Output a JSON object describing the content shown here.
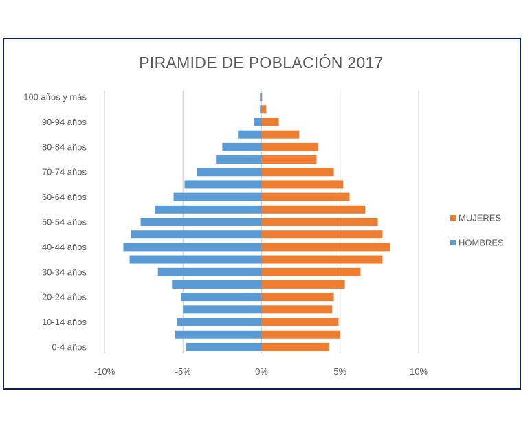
{
  "chart_data": {
    "type": "bar",
    "orientation": "horizontal",
    "title": "PIRAMIDE DE POBLACIÓN 2017",
    "categories": [
      "0-4 años",
      "",
      "10-14 años",
      "",
      "20-24 años",
      "",
      "30-34 años",
      "",
      "40-44 años",
      "",
      "50-54 años",
      "",
      "60-64 años",
      "",
      "70-74 años",
      "",
      "80-84 años",
      "",
      "90-94 años",
      "",
      "100 años y más"
    ],
    "series": [
      {
        "name": "HOMBRES",
        "color": "#5B9BD5",
        "values": [
          -4.8,
          -5.5,
          -5.4,
          -5.0,
          -5.1,
          -5.7,
          -6.6,
          -8.4,
          -8.8,
          -8.3,
          -7.7,
          -6.8,
          -5.6,
          -4.9,
          -4.1,
          -2.9,
          -2.5,
          -1.5,
          -0.5,
          -0.1,
          -0.1
        ]
      },
      {
        "name": "MUJERES",
        "color": "#ED7D31",
        "values": [
          4.3,
          5.0,
          4.9,
          4.5,
          4.6,
          5.3,
          6.3,
          7.7,
          8.2,
          7.7,
          7.4,
          6.6,
          5.6,
          5.2,
          4.6,
          3.5,
          3.6,
          2.4,
          1.1,
          0.3,
          0.0
        ]
      }
    ],
    "xlim": [
      -10,
      10
    ],
    "xticks": [
      -10,
      -5,
      0,
      5,
      10
    ],
    "xtick_labels": [
      "-10%",
      "-5%",
      "0%",
      "5%",
      "10%"
    ],
    "grid": "vertical",
    "legend": {
      "placement": "right",
      "entries": [
        "MUJERES",
        "HOMBRES"
      ]
    }
  }
}
